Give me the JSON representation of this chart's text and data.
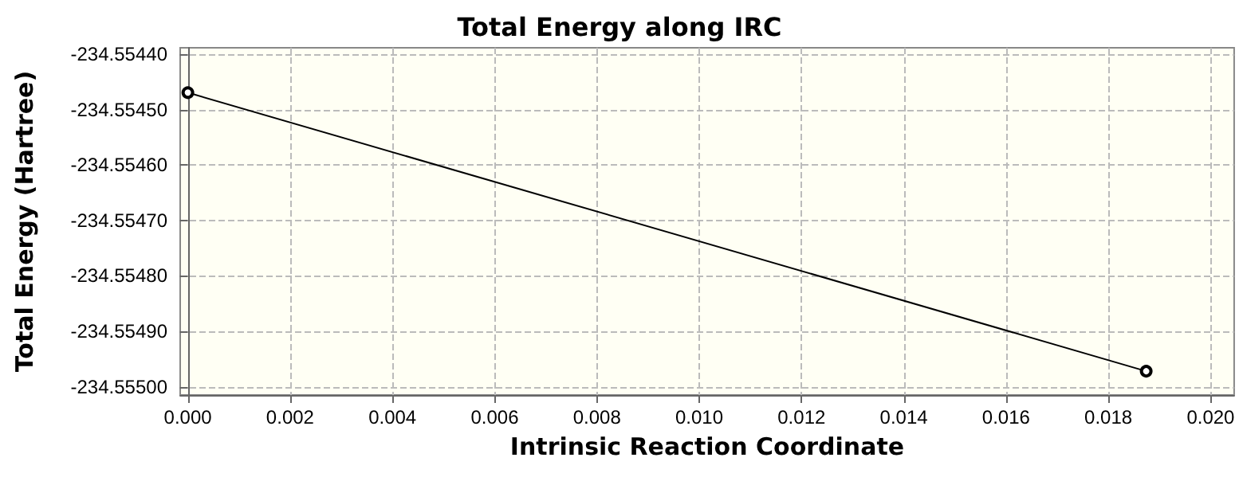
{
  "chart_data": {
    "type": "line",
    "title": "Total Energy along IRC",
    "xlabel": "Intrinsic Reaction Coordinate",
    "ylabel": "Total Energy (Hartree)",
    "series": [
      {
        "color": "#000000",
        "x": [
          0,
          0.01874
        ],
        "values": [
          -234.554469,
          -234.554972
        ]
      }
    ],
    "marker": "circle",
    "grid": true,
    "xlim": [
      -0.00015,
      0.02046
    ],
    "ylim": [
      -234.555015,
      -234.554388
    ],
    "xticks": [
      {
        "value": 0,
        "label": "0.000"
      },
      {
        "value": 0.002,
        "label": "0.002"
      },
      {
        "value": 0.004,
        "label": "0.004"
      },
      {
        "value": 0.006,
        "label": "0.006"
      },
      {
        "value": 0.008,
        "label": "0.008"
      },
      {
        "value": 0.01,
        "label": "0.010"
      },
      {
        "value": 0.012,
        "label": "0.012"
      },
      {
        "value": 0.014,
        "label": "0.014"
      },
      {
        "value": 0.016,
        "label": "0.016"
      },
      {
        "value": 0.018,
        "label": "0.018"
      },
      {
        "value": 0.02,
        "label": "0.020"
      }
    ],
    "yticks": [
      {
        "value": -234.5544,
        "label": "-234.55440"
      },
      {
        "value": -234.5545,
        "label": "-234.55450"
      },
      {
        "value": -234.5546,
        "label": "-234.55460"
      },
      {
        "value": -234.5547,
        "label": "-234.55470"
      },
      {
        "value": -234.5548,
        "label": "-234.55480"
      },
      {
        "value": -234.5549,
        "label": "-234.55490"
      },
      {
        "value": -234.555,
        "label": "-234.55500"
      }
    ]
  }
}
